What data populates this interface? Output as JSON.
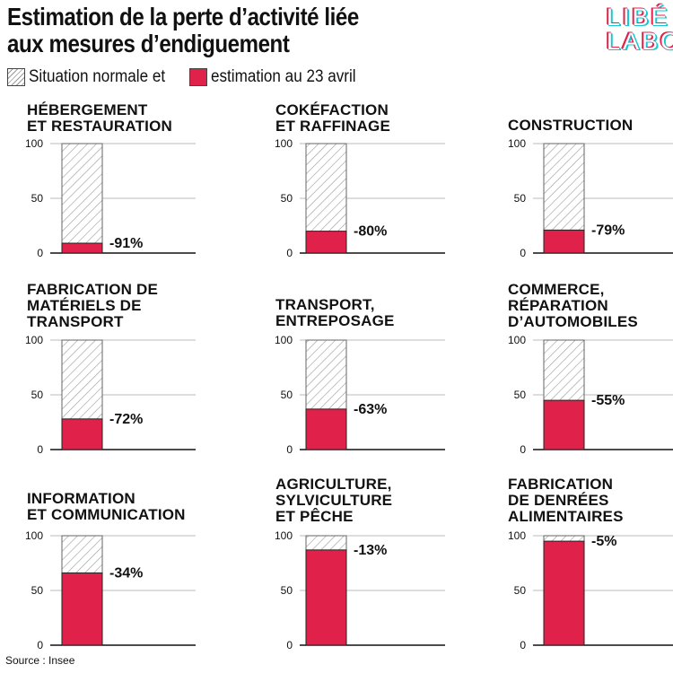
{
  "title_lines": [
    "Estimation de la perte d’activité liée",
    "aux mesures d’endiguement"
  ],
  "legend": {
    "normal_label": "Situation  normale et",
    "estimate_label": "estimation au 23 avril"
  },
  "logo": {
    "line1": "LIBÉ",
    "line2": "LABO"
  },
  "source": "Source : Insee",
  "colors": {
    "estimate": "#e0214a",
    "hatch": "#9a9a9a",
    "axis": "#111111",
    "gridline": "#bbbbbb",
    "logo_red": "#e0214a",
    "logo_cyan": "#18c7d6"
  },
  "chart_data": [
    {
      "type": "bar",
      "title_lines": [
        "HÉBERGEMENT",
        "ET RESTAURATION"
      ],
      "categories": [
        "Situation normale",
        "Estimation au 23 avril"
      ],
      "values": [
        100,
        9
      ],
      "label": "-91%",
      "yticks": [
        0,
        50,
        100
      ],
      "ylim": [
        0,
        100
      ]
    },
    {
      "type": "bar",
      "title_lines": [
        "COKÉFACTION",
        "ET RAFFINAGE"
      ],
      "categories": [
        "Situation normale",
        "Estimation au 23 avril"
      ],
      "values": [
        100,
        20
      ],
      "label": "-80%",
      "yticks": [
        0,
        50,
        100
      ],
      "ylim": [
        0,
        100
      ]
    },
    {
      "type": "bar",
      "title_lines": [
        "CONSTRUCTION"
      ],
      "categories": [
        "Situation normale",
        "Estimation au 23 avril"
      ],
      "values": [
        100,
        21
      ],
      "label": "-79%",
      "yticks": [
        0,
        50,
        100
      ],
      "ylim": [
        0,
        100
      ]
    },
    {
      "type": "bar",
      "title_lines": [
        "FABRICATION DE",
        "MATÉRIELS DE",
        "TRANSPORT"
      ],
      "categories": [
        "Situation normale",
        "Estimation au 23 avril"
      ],
      "values": [
        100,
        28
      ],
      "label": "-72%",
      "yticks": [
        0,
        50,
        100
      ],
      "ylim": [
        0,
        100
      ]
    },
    {
      "type": "bar",
      "title_lines": [
        "TRANSPORT,",
        "ENTREPOSAGE"
      ],
      "categories": [
        "Situation normale",
        "Estimation au 23 avril"
      ],
      "values": [
        100,
        37
      ],
      "label": "-63%",
      "yticks": [
        0,
        50,
        100
      ],
      "ylim": [
        0,
        100
      ]
    },
    {
      "type": "bar",
      "title_lines": [
        "COMMERCE,",
        "RÉPARATION",
        "D’AUTOMOBILES"
      ],
      "categories": [
        "Situation normale",
        "Estimation au 23 avril"
      ],
      "values": [
        100,
        45
      ],
      "label": "-55%",
      "yticks": [
        0,
        50,
        100
      ],
      "ylim": [
        0,
        100
      ]
    },
    {
      "type": "bar",
      "title_lines": [
        "INFORMATION",
        "ET COMMUNICATION"
      ],
      "categories": [
        "Situation normale",
        "Estimation au 23 avril"
      ],
      "values": [
        100,
        66
      ],
      "label": "-34%",
      "yticks": [
        0,
        50,
        100
      ],
      "ylim": [
        0,
        100
      ]
    },
    {
      "type": "bar",
      "title_lines": [
        "AGRICULTURE,",
        "SYLVICULTURE",
        "ET PÊCHE"
      ],
      "categories": [
        "Situation normale",
        "Estimation au 23 avril"
      ],
      "values": [
        100,
        87
      ],
      "label": "-13%",
      "yticks": [
        0,
        50,
        100
      ],
      "ylim": [
        0,
        100
      ]
    },
    {
      "type": "bar",
      "title_lines": [
        "FABRICATION",
        "DE DENRÉES",
        "ALIMENTAIRES"
      ],
      "categories": [
        "Situation normale",
        "Estimation au 23 avril"
      ],
      "values": [
        100,
        95
      ],
      "label": "-5%",
      "yticks": [
        0,
        50,
        100
      ],
      "ylim": [
        0,
        100
      ]
    }
  ]
}
